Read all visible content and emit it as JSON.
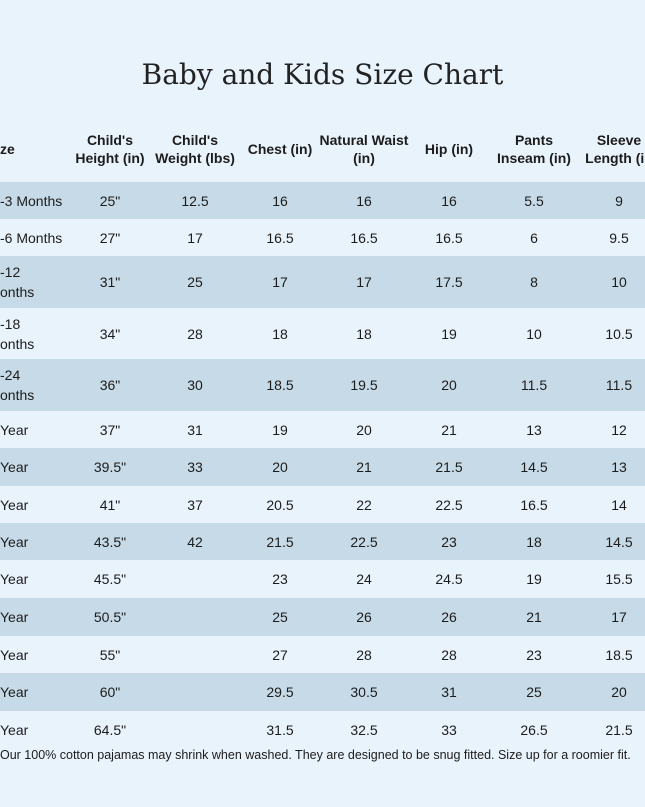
{
  "title": "Baby and Kids Size Chart",
  "table": {
    "headers": [
      "ze",
      "Child's Height (in)",
      "Child's Weight (lbs)",
      "Chest (in)",
      "Natural Waist (in)",
      "Hip (in)",
      "Pants Inseam (in)",
      "Sleeve Length (in"
    ],
    "rows": [
      [
        "-3 Months",
        "25\"",
        12.5,
        16,
        16,
        16,
        5.5,
        9
      ],
      [
        "-6 Months",
        "27\"",
        17,
        16.5,
        16.5,
        16.5,
        6,
        9.5
      ],
      [
        "-12\nonths",
        "31\"",
        25,
        17,
        17,
        17.5,
        8,
        10
      ],
      [
        "-18\nonths",
        "34\"",
        28,
        18,
        18,
        19,
        10,
        10.5
      ],
      [
        "-24\nonths",
        "36\"",
        30,
        18.5,
        19.5,
        20,
        11.5,
        11.5
      ],
      [
        "Year",
        "37\"",
        31,
        19,
        20,
        21,
        13,
        12
      ],
      [
        "Year",
        "39.5\"",
        33,
        20,
        21,
        21.5,
        14.5,
        13
      ],
      [
        "Year",
        "41\"",
        37,
        20.5,
        22,
        22.5,
        16.5,
        14
      ],
      [
        "Year",
        "43.5\"",
        42,
        21.5,
        22.5,
        23,
        18,
        14.5
      ],
      [
        "Year",
        "45.5\"",
        null,
        23,
        24,
        24.5,
        19,
        15.5
      ],
      [
        "Year",
        "50.5\"",
        null,
        25,
        26,
        26,
        21,
        17
      ],
      [
        "Year",
        "55\"",
        null,
        27,
        28,
        28,
        23,
        18.5
      ],
      [
        "Year",
        "60\"",
        null,
        29.5,
        30.5,
        31,
        25,
        20
      ],
      [
        "Year",
        "64.5\"",
        null,
        31.5,
        32.5,
        33,
        26.5,
        21.5
      ]
    ]
  },
  "footnote": "Our 100% cotton pajamas may shrink when washed. They are designed to be snug fitted. Size up for a roomier fit."
}
